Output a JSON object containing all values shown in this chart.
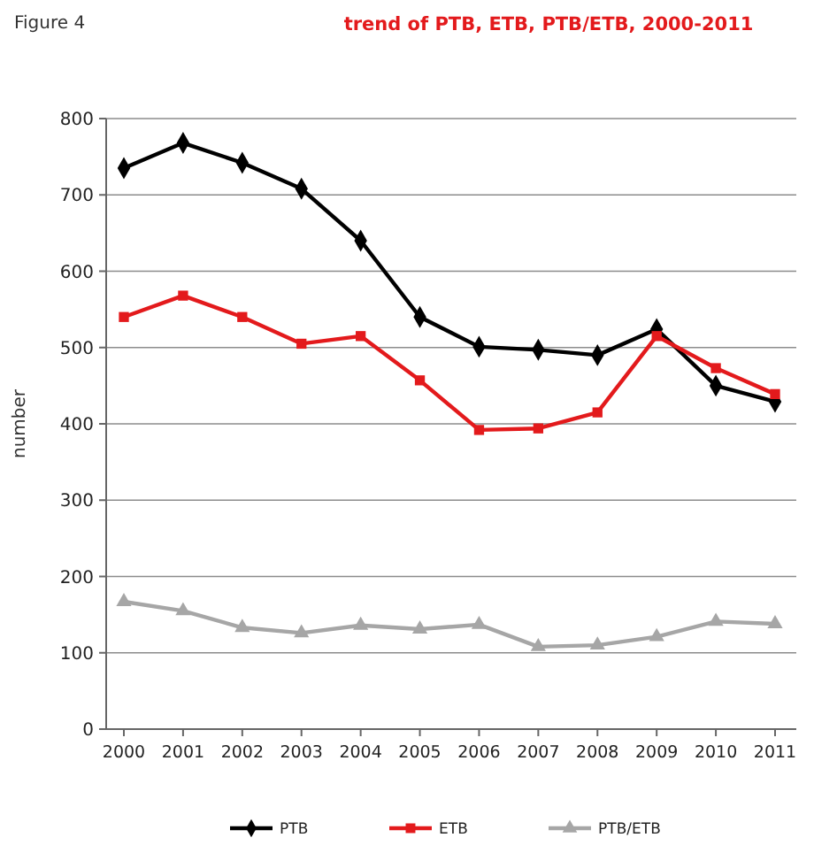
{
  "chart_data": {
    "type": "line",
    "title": "trend of PTB, ETB, PTB/ETB, 2000-2011",
    "ylabel": "number",
    "annotations": [
      "Figure 4"
    ],
    "categories": [
      "2000",
      "2001",
      "2002",
      "2003",
      "2004",
      "2005",
      "2006",
      "2007",
      "2008",
      "2009",
      "2010",
      "2011"
    ],
    "series": [
      {
        "name": "PTB",
        "color": "#000000",
        "marker": "diamond",
        "values": [
          735,
          768,
          742,
          708,
          640,
          540,
          501,
          497,
          490,
          524,
          450,
          429
        ]
      },
      {
        "name": "ETB",
        "color": "#e31a1c",
        "marker": "square",
        "values": [
          540,
          568,
          540,
          505,
          515,
          457,
          392,
          394,
          415,
          515,
          473,
          439
        ]
      },
      {
        "name": "PTB/ETB",
        "color": "#a6a6a6",
        "marker": "triangle",
        "values": [
          167,
          155,
          133,
          126,
          136,
          131,
          137,
          108,
          110,
          121,
          141,
          138
        ]
      }
    ],
    "ylim": [
      0,
      800
    ],
    "yticks": [
      0,
      100,
      200,
      300,
      400,
      500,
      600,
      700,
      800
    ],
    "grid": "y",
    "legend": "bottom",
    "line_style": "solid"
  }
}
